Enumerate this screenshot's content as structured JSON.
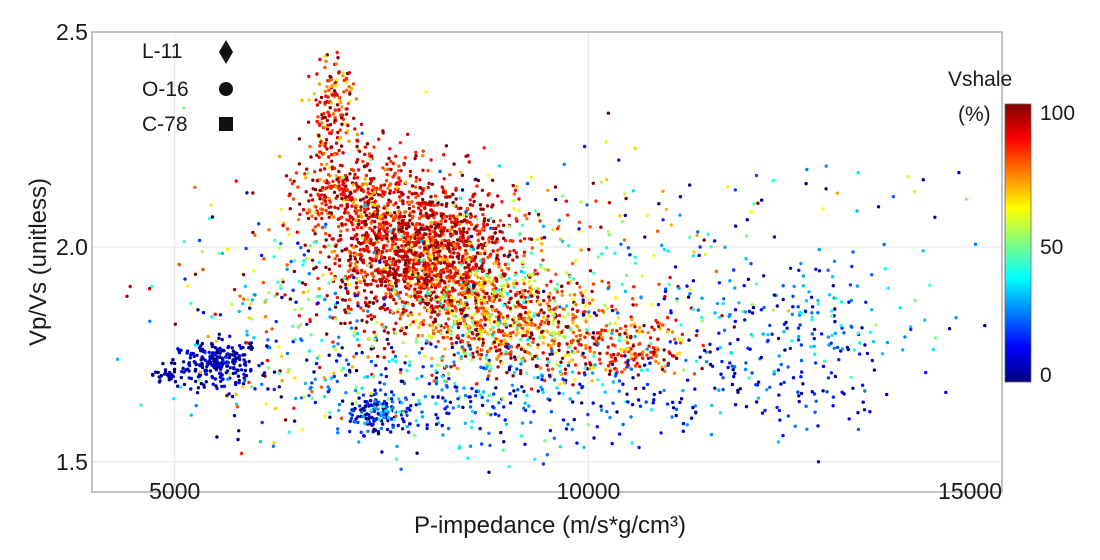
{
  "chart_data": {
    "type": "scatter",
    "title": "",
    "xlabel": "P-impedance (m/s*g/cm³)",
    "ylabel": "Vp/Vs (unitless)",
    "xlim": [
      4000,
      15000
    ],
    "ylim": [
      1.43,
      2.5
    ],
    "xticks": [
      5000,
      10000,
      15000
    ],
    "xtick_labels": [
      "5000",
      "10000",
      "15000"
    ],
    "yticks": [
      1.5,
      2.0,
      2.5
    ],
    "ytick_labels": [
      "1.5",
      "2.0",
      "2.5"
    ],
    "grid": true,
    "legend": {
      "placement": "top-left",
      "entries": [
        {
          "label": "L-11",
          "marker": "diamond"
        },
        {
          "label": "O-16",
          "marker": "circle"
        },
        {
          "label": "C-78",
          "marker": "square"
        }
      ]
    },
    "colorbar": {
      "title_line1": "Vshale",
      "title_line2": "(%)",
      "min": 0,
      "max": 100,
      "ticks": [
        100,
        50,
        0
      ],
      "tick_labels": [
        "100",
        "50",
        "0"
      ],
      "colormap": "jet",
      "placement": "right"
    },
    "clusters": [
      {
        "x": 8000,
        "y": 1.98,
        "sx": 550,
        "sy": 0.09,
        "n": 1500,
        "vshale": 90,
        "vs_spread": 10
      },
      {
        "x": 7200,
        "y": 2.12,
        "sx": 380,
        "sy": 0.06,
        "n": 400,
        "vshale": 88,
        "vs_spread": 10
      },
      {
        "x": 6900,
        "y": 2.32,
        "sx": 130,
        "sy": 0.06,
        "n": 150,
        "vshale": 85,
        "vs_spread": 12
      },
      {
        "x": 8900,
        "y": 1.85,
        "sx": 500,
        "sy": 0.06,
        "n": 600,
        "vshale": 75,
        "vs_spread": 18
      },
      {
        "x": 9800,
        "y": 1.78,
        "sx": 700,
        "sy": 0.05,
        "n": 250,
        "vshale": 80,
        "vs_spread": 15
      },
      {
        "x": 10600,
        "y": 1.76,
        "sx": 400,
        "sy": 0.03,
        "n": 120,
        "vshale": 85,
        "vs_spread": 12
      },
      {
        "x": 5500,
        "y": 1.73,
        "sx": 250,
        "sy": 0.03,
        "n": 240,
        "vshale": 5,
        "vs_spread": 5
      },
      {
        "x": 4950,
        "y": 1.7,
        "sx": 120,
        "sy": 0.01,
        "n": 30,
        "vshale": 3,
        "vs_spread": 3
      },
      {
        "x": 7450,
        "y": 1.61,
        "sx": 180,
        "sy": 0.025,
        "n": 120,
        "vshale": 12,
        "vs_spread": 10
      },
      {
        "x": 8400,
        "y": 1.66,
        "sx": 1200,
        "sy": 0.07,
        "n": 350,
        "vshale": 20,
        "vs_spread": 15
      },
      {
        "x": 11500,
        "y": 1.66,
        "sx": 1100,
        "sy": 0.06,
        "n": 160,
        "vshale": 15,
        "vs_spread": 10
      },
      {
        "x": 12300,
        "y": 1.84,
        "sx": 900,
        "sy": 0.07,
        "n": 200,
        "vshale": 25,
        "vs_spread": 15
      },
      {
        "x": 6500,
        "y": 1.85,
        "sx": 800,
        "sy": 0.13,
        "n": 300,
        "vshale": 50,
        "vs_spread": 35
      },
      {
        "x": 9500,
        "y": 2.0,
        "sx": 1200,
        "sy": 0.12,
        "n": 220,
        "vshale": 60,
        "vs_spread": 30
      },
      {
        "x": 12700,
        "y": 2.07,
        "sx": 1200,
        "sy": 0.09,
        "n": 35,
        "vshale": 25,
        "vs_spread": 20
      }
    ]
  },
  "colors": {
    "background": "#ffffff",
    "frame": "#b0b0b0",
    "grid": "#e4e4e4",
    "text": "#1a1a1a",
    "colormap_stops": [
      "#00007f",
      "#0000ff",
      "#007fff",
      "#00ffff",
      "#7fff7f",
      "#ffff00",
      "#ff7f00",
      "#ff0000",
      "#7f0000"
    ]
  }
}
